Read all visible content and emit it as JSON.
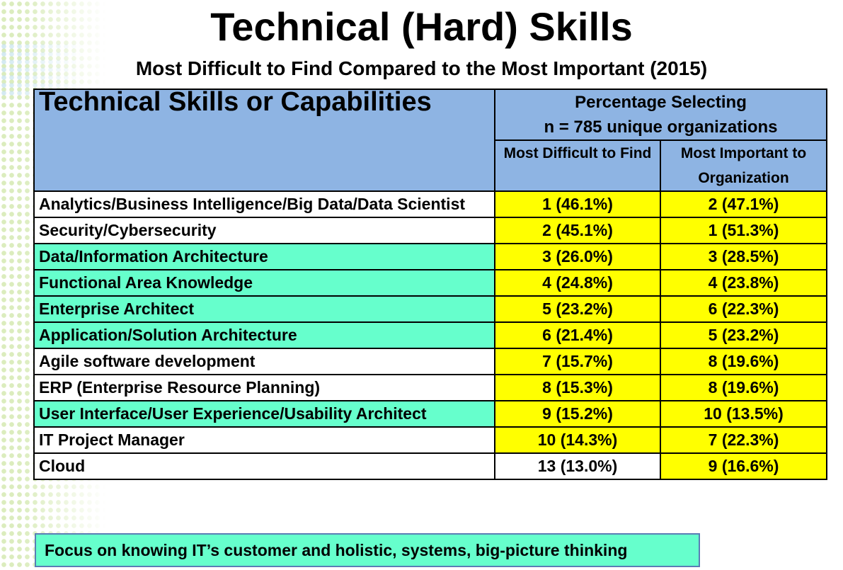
{
  "title": "Technical (Hard) Skills",
  "subtitle": "Most Difficult to Find Compared to the  Most Important (2015)",
  "table": {
    "corner_header": "Technical Skills or Capabilities",
    "percentage_header_line1": "Percentage Selecting",
    "percentage_header_line2": "n = 785 unique organizations",
    "col1_header": "Most Difficult to Find",
    "col2_header": "Most Important to Organization",
    "rows": [
      {
        "skill": "Analytics/Business Intelligence/Big Data/Data Scientist",
        "difficult": "1 (46.1%)",
        "important": "2 (47.1%)",
        "name_bg": "white",
        "difficult_bg": "yellow",
        "important_bg": "yellow"
      },
      {
        "skill": "Security/Cybersecurity",
        "difficult": "2 (45.1%)",
        "important": "1 (51.3%)",
        "name_bg": "white",
        "difficult_bg": "yellow",
        "important_bg": "yellow"
      },
      {
        "skill": "Data/Information Architecture",
        "difficult": "3 (26.0%)",
        "important": "3 (28.5%)",
        "name_bg": "teal",
        "difficult_bg": "yellow",
        "important_bg": "yellow"
      },
      {
        "skill": "Functional Area Knowledge",
        "difficult": "4 (24.8%)",
        "important": "4 (23.8%)",
        "name_bg": "teal",
        "difficult_bg": "yellow",
        "important_bg": "yellow"
      },
      {
        "skill": "Enterprise Architect",
        "difficult": "5 (23.2%)",
        "important": "6 (22.3%)",
        "name_bg": "teal",
        "difficult_bg": "yellow",
        "important_bg": "yellow"
      },
      {
        "skill": "Application/Solution Architecture",
        "difficult": "6 (21.4%)",
        "important": "5 (23.2%)",
        "name_bg": "teal",
        "difficult_bg": "yellow",
        "important_bg": "yellow"
      },
      {
        "skill": "Agile software development",
        "difficult": "7 (15.7%)",
        "important": "8 (19.6%)",
        "name_bg": "white",
        "difficult_bg": "yellow",
        "important_bg": "yellow"
      },
      {
        "skill": "ERP (Enterprise Resource Planning)",
        "difficult": "8 (15.3%)",
        "important": "8 (19.6%)",
        "name_bg": "white",
        "difficult_bg": "yellow",
        "important_bg": "yellow"
      },
      {
        "skill": "User Interface/User Experience/Usability Architect",
        "difficult": "9 (15.2%)",
        "important": "10 (13.5%)",
        "name_bg": "teal",
        "difficult_bg": "yellow",
        "important_bg": "yellow"
      },
      {
        "skill": "IT Project Manager",
        "difficult": "10 (14.3%)",
        "important": "7 (22.3%)",
        "name_bg": "white",
        "difficult_bg": "yellow",
        "important_bg": "yellow"
      },
      {
        "skill": "Cloud",
        "difficult": "13 (13.0%)",
        "important": "9 (16.6%)",
        "name_bg": "white",
        "difficult_bg": "white",
        "important_bg": "yellow"
      }
    ]
  },
  "footer": "Focus on knowing IT’s customer and holistic, systems, big-picture thinking",
  "colors": {
    "header_blue": "#8eb4e3",
    "teal": "#66ffcc",
    "yellow": "#ffff00",
    "white": "#ffffff"
  }
}
